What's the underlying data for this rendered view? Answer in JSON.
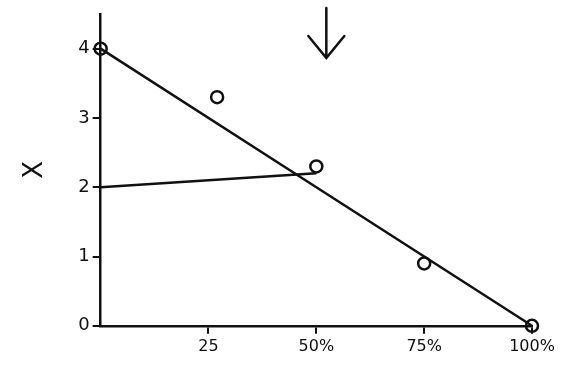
{
  "chart_data": {
    "type": "line",
    "y_label": "X",
    "xlim": [
      0,
      100
    ],
    "xticks": [
      25,
      {
        "value": 50,
        "label": "50%"
      },
      {
        "value": 75,
        "label": "75%"
      },
      {
        "value": 100,
        "label": "100%"
      }
    ],
    "ylim": [
      0,
      4.5
    ],
    "yticks": [
      0,
      1,
      2,
      3,
      4
    ],
    "grid": false,
    "series": [
      {
        "type": "line",
        "color": "#111111",
        "line_style": "solid",
        "x": [
          0,
          100
        ],
        "values": [
          4,
          0
        ]
      },
      {
        "type": "scatter",
        "color": "#111111",
        "marker": "circle",
        "x": [
          0,
          27,
          50,
          75,
          100
        ],
        "values": [
          4,
          3.3,
          2.3,
          0.9,
          0
        ]
      },
      {
        "type": "line",
        "color": "#111111",
        "line_style": "solid",
        "x": [
          0,
          50
        ],
        "values": [
          2,
          2.2
        ]
      }
    ]
  }
}
